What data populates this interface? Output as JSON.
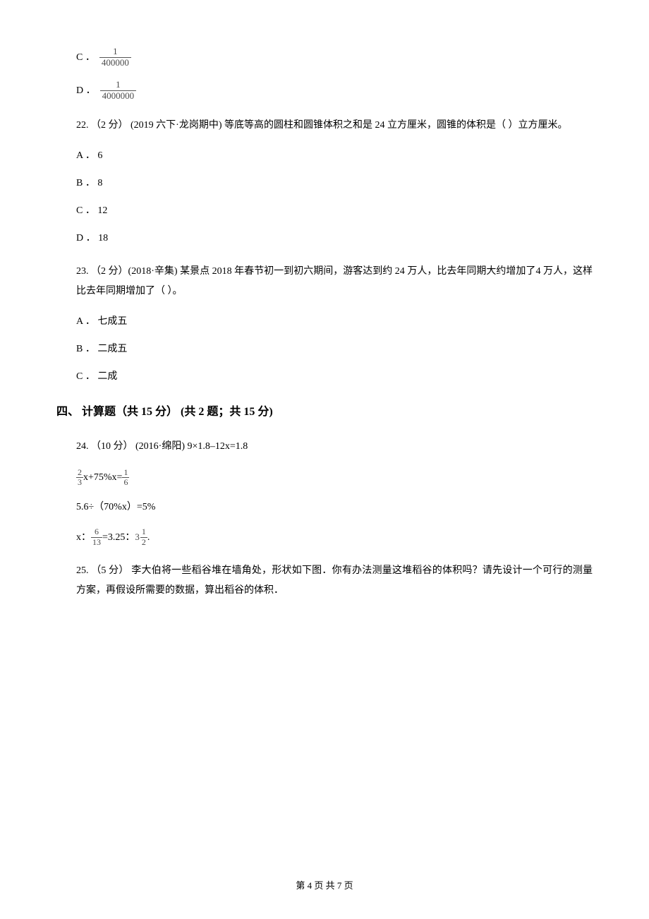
{
  "q21_options": {
    "c": {
      "label": "C ．",
      "num": "1",
      "den": "400000"
    },
    "d": {
      "label": "D ．",
      "num": "1",
      "den": "4000000"
    }
  },
  "q22": {
    "text": "22. （2 分） (2019 六下·龙岗期中) 等底等高的圆柱和圆锥体积之和是 24 立方厘米，圆锥的体积是（    ）立方厘米。",
    "a": {
      "label": "A ．",
      "val": "6"
    },
    "b": {
      "label": "B ．",
      "val": "8"
    },
    "c": {
      "label": "C ．",
      "val": "12"
    },
    "d": {
      "label": "D ．",
      "val": "18"
    }
  },
  "q23": {
    "text": "23. （2 分）(2018·辛集) 某景点 2018 年春节初一到初六期间，游客达到约 24 万人，比去年同期大约增加了4 万人，这样比去年同期增加了（    ）。",
    "a": {
      "label": "A ．",
      "val": "七成五"
    },
    "b": {
      "label": "B ．",
      "val": "二成五"
    },
    "c": {
      "label": "C ．",
      "val": "二成"
    }
  },
  "section4": {
    "title": "四、 计算题（共 15 分） (共 2 题；共 15 分)"
  },
  "q24": {
    "intro": "24. （10 分） (2016·绵阳) 9×1.8–12x=1.8",
    "line2": {
      "f1n": "2",
      "f1d": "3",
      "mid": " x+75%x= ",
      "f2n": "1",
      "f2d": "6"
    },
    "line3": "5.6÷（70%x）=5%",
    "line4": {
      "pre": "x：",
      "f1n": "6",
      "f1d": "13",
      "mid": " =3.25：",
      "whole": "3",
      "f2n": "1",
      "f2d": "2",
      "post": " ."
    }
  },
  "q25": {
    "text": "25. （5 分） 李大伯将一些稻谷堆在墙角处，形状如下图．你有办法测量这堆稻谷的体积吗？请先设计一个可行的测量方案，再假设所需要的数据，算出稻谷的体积．"
  },
  "footer": "第 4 页 共 7 页"
}
